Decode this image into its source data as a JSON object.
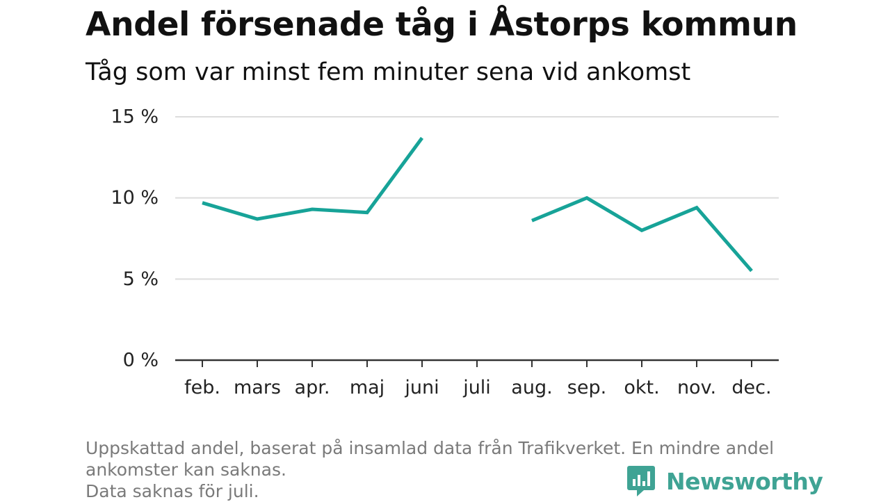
{
  "title": "Andel försenade tåg i Åstorps kommun",
  "subtitle": "Tåg som var minst fem minuter sena vid ankomst",
  "footnote": {
    "line1": "Uppskattad andel, baserat på insamlad data från Trafikverket. En mindre andel ankomster kan saknas.",
    "line2": "Data saknas för juli."
  },
  "brand": {
    "name": "Newsworthy",
    "icon": "newsworthy-logo-icon",
    "color": "#3fa394"
  },
  "chart_data": {
    "type": "line",
    "title": "Andel försenade tåg i Åstorps kommun",
    "subtitle": "Tåg som var minst fem minuter sena vid ankomst",
    "categories": [
      "feb.",
      "mars",
      "apr.",
      "maj",
      "juni",
      "juli",
      "aug.",
      "sep.",
      "okt.",
      "nov.",
      "dec."
    ],
    "series": [
      {
        "values": [
          9.7,
          8.7,
          9.3,
          9.1,
          13.7,
          null,
          8.6,
          10.0,
          8.0,
          9.4,
          5.5
        ],
        "color": "#17a398"
      }
    ],
    "yticks": [
      0,
      5,
      10,
      15
    ],
    "ytick_labels": [
      "0 %",
      "5 %",
      "10 %",
      "15 %"
    ],
    "ylim": [
      0,
      15
    ],
    "grid": true,
    "line_color": "#17a398",
    "grid_color": "#dddddd",
    "axis_color": "#333333"
  }
}
